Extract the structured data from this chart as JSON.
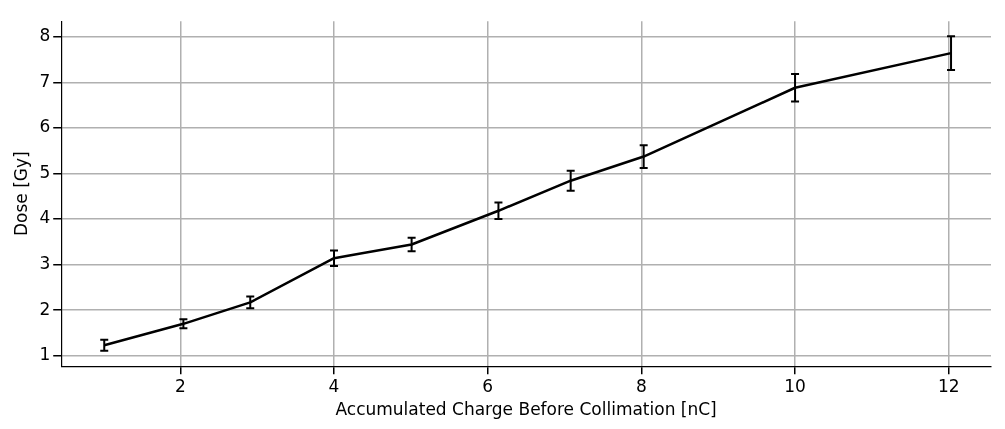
{
  "chart_data": {
    "type": "line",
    "xlabel": "Accumulated Charge Before Collimation [nC]",
    "ylabel": "Dose [Gy]",
    "x": [
      1.01,
      2.04,
      2.91,
      4.0,
      5.01,
      6.14,
      7.08,
      8.03,
      10.0,
      12.03
    ],
    "series": [
      {
        "color": "#000000",
        "values": [
          1.23,
          1.7,
          2.17,
          3.14,
          3.44,
          4.18,
          4.84,
          5.37,
          6.88,
          7.64
        ],
        "errors": [
          0.12,
          0.1,
          0.13,
          0.17,
          0.15,
          0.18,
          0.22,
          0.25,
          0.3,
          0.37
        ]
      }
    ],
    "xlim": [
      0.45,
      12.55
    ],
    "xticks": [
      2,
      4,
      6,
      8,
      10,
      12
    ],
    "ylim": [
      0.77,
      8.34
    ],
    "yticks": [
      1,
      2,
      3,
      4,
      5,
      6,
      7,
      8
    ],
    "grid": true,
    "legend": false,
    "marker": "none",
    "line_style": "solid"
  }
}
